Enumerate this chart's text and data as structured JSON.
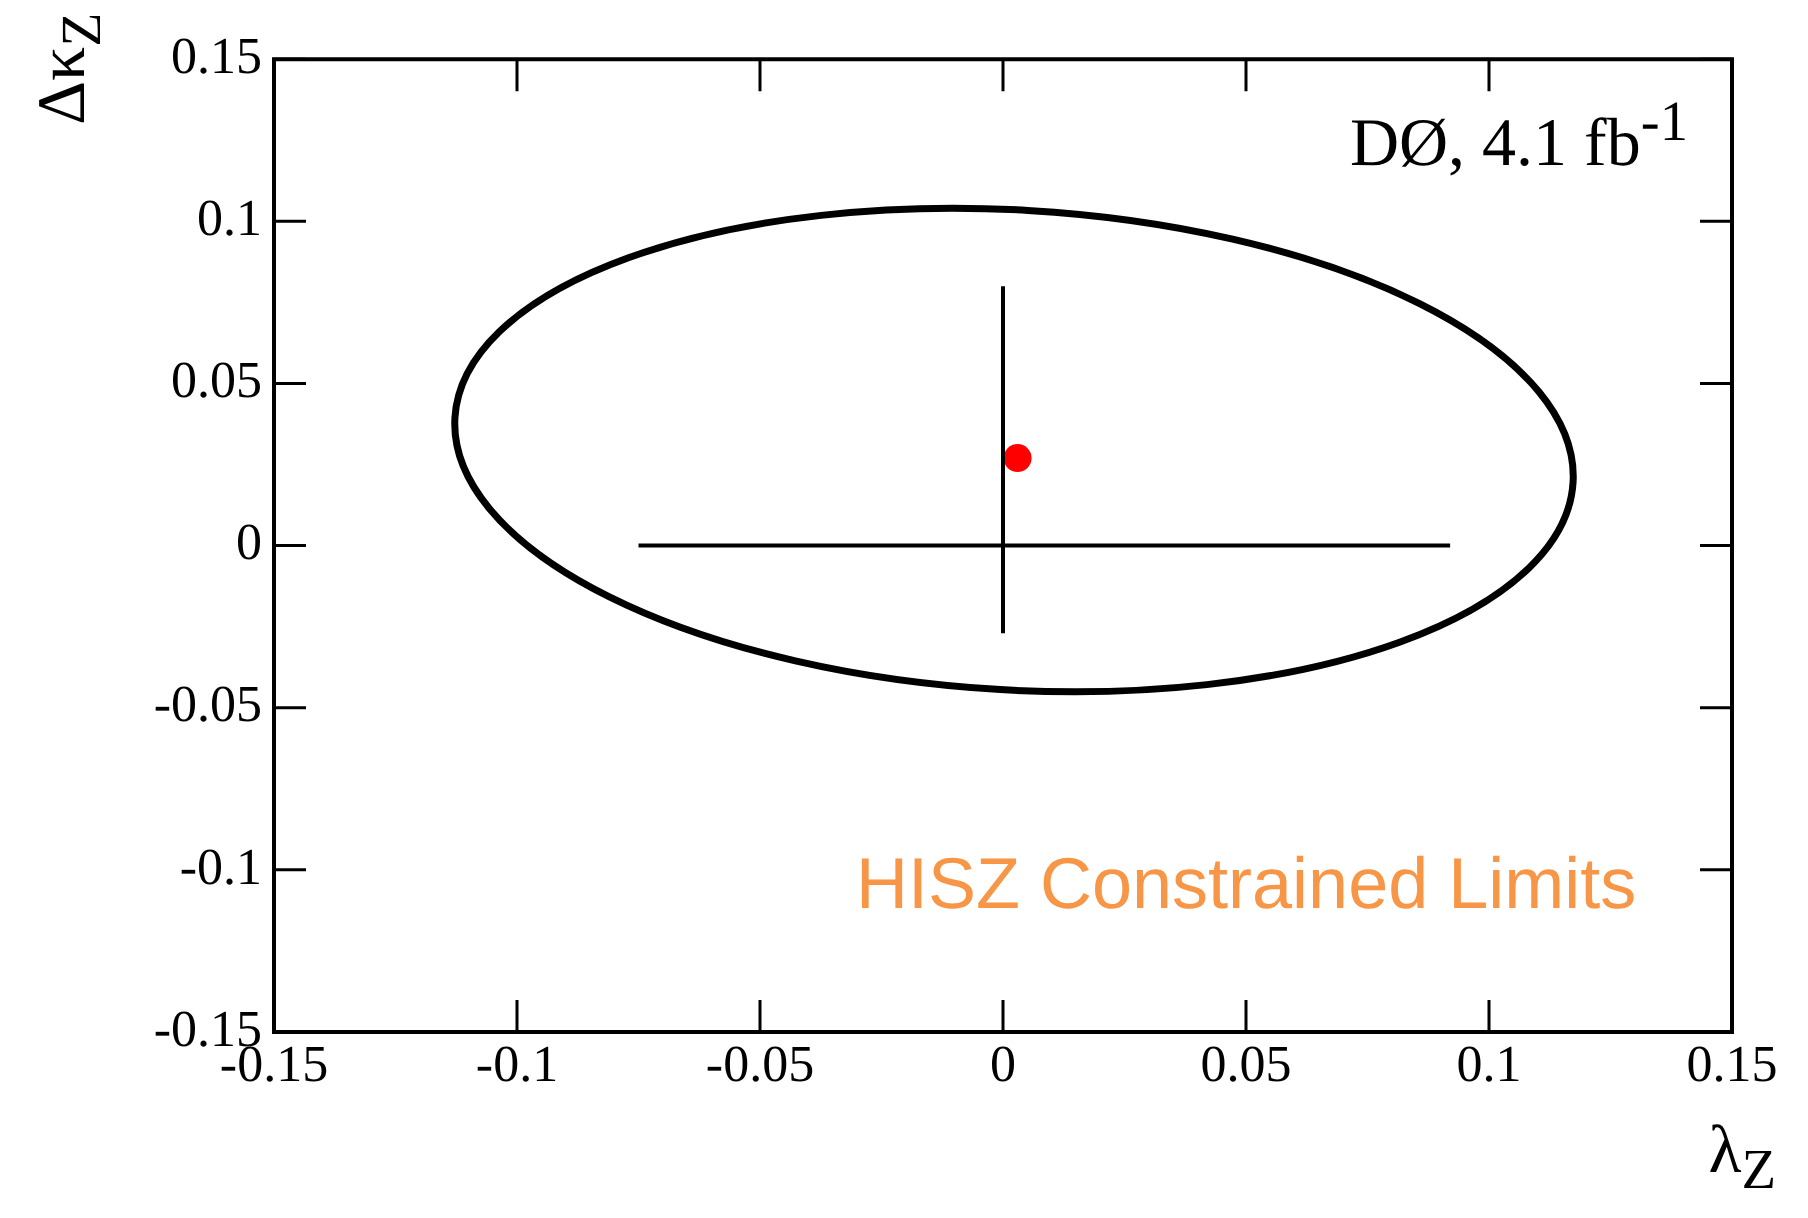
{
  "chart_data": {
    "type": "line",
    "xlabel": "λ$_{Z}$",
    "ylabel": "Δκ$_{Z}$",
    "xlim": [
      -0.15,
      0.15
    ],
    "ylim": [
      -0.15,
      0.15
    ],
    "xticks": [
      -0.15,
      -0.1,
      -0.05,
      0,
      0.05,
      0.1,
      0.15
    ],
    "yticks": [
      -0.15,
      -0.1,
      -0.05,
      0,
      0.05,
      0.1,
      0.15
    ],
    "grid": false,
    "legend": false,
    "marker": "none",
    "annotations": [
      "DØ, 4.1 fb$^{-1}$",
      "HISZ Constrained Limits"
    ],
    "series": [
      {
        "type": "line",
        "color": "#000000",
        "x": [
          -0.075,
          0.092
        ],
        "values": [
          0,
          0
        ]
      },
      {
        "type": "line",
        "color": "#000000",
        "x": [
          0,
          0
        ],
        "values": [
          -0.027,
          0.08
        ]
      },
      {
        "type": "scatter",
        "marker": "circle",
        "color": "#ff0000",
        "x": [
          0.003
        ],
        "values": [
          0.027
        ]
      }
    ]
  }
}
